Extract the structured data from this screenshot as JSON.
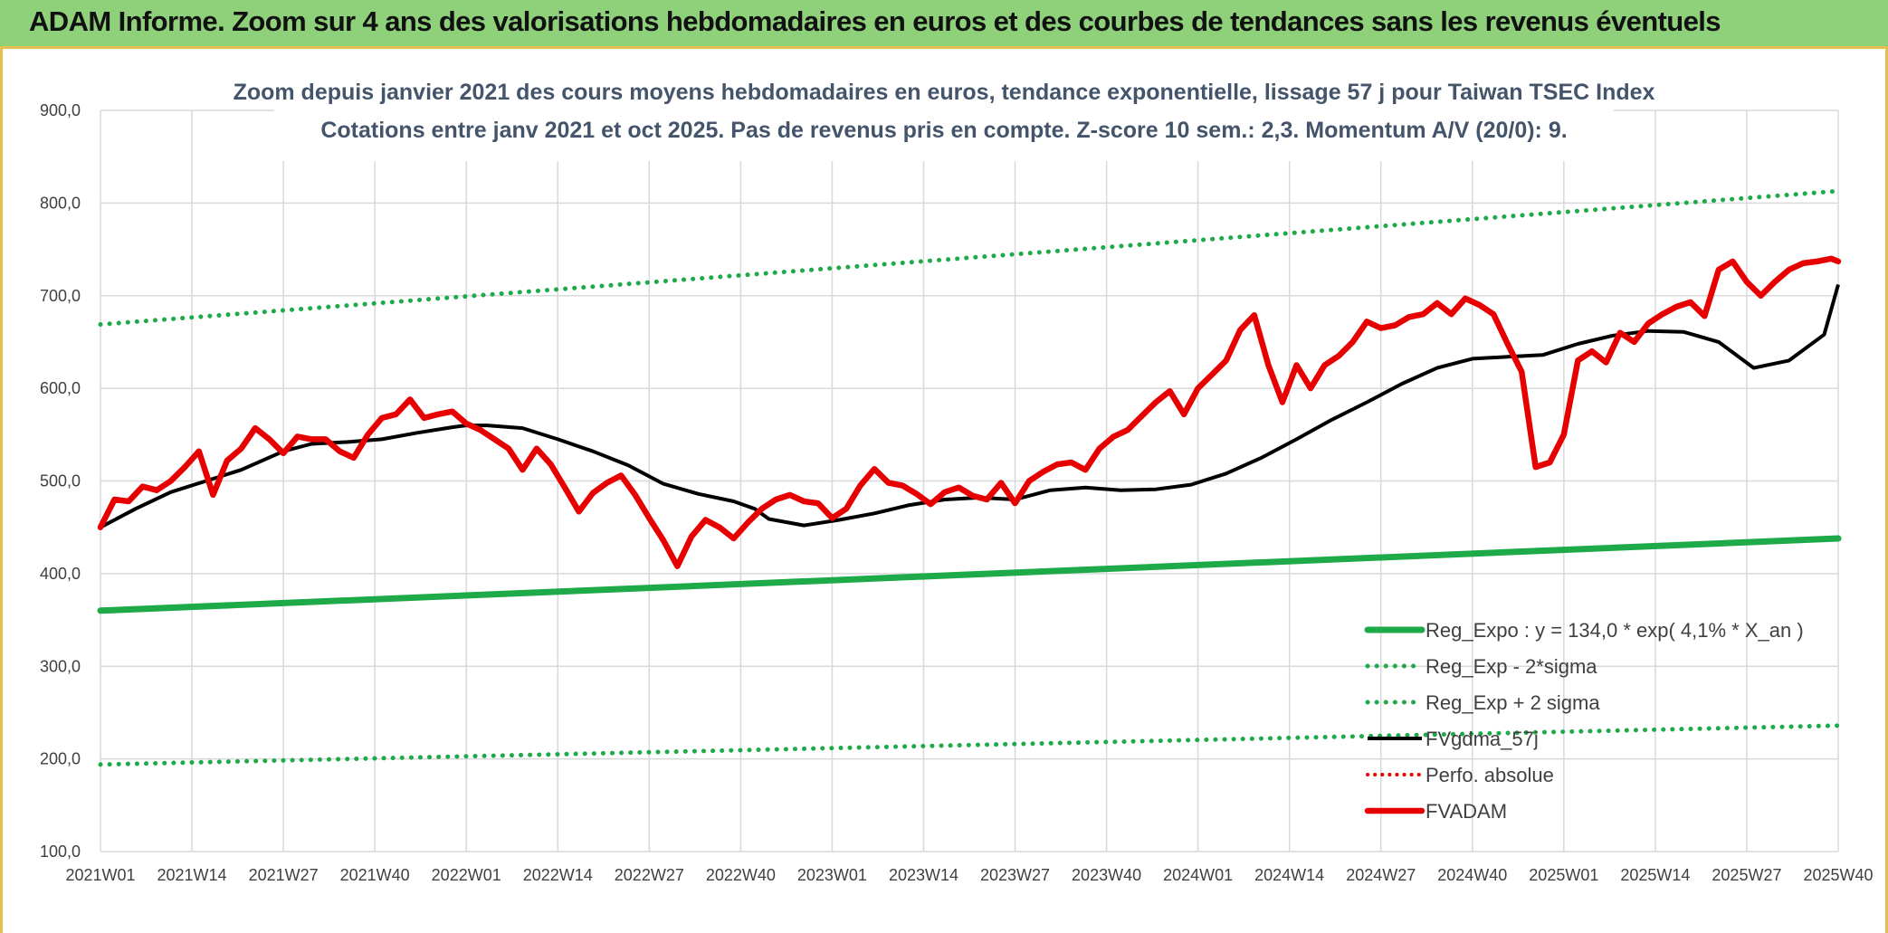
{
  "banner": {
    "title": "ADAM Informe. Zoom sur 4 ans des valorisations hebdomadaires en euros et des courbes de tendances sans les revenus éventuels"
  },
  "colors": {
    "banner_bg": "#8fd17a",
    "accent_gold": "#e2c04d",
    "green": "#1faa4a",
    "red": "#e60000",
    "black": "#000000",
    "grid": "#d9d9d9"
  },
  "chart_data": {
    "type": "line",
    "title_line1": "Zoom depuis janvier 2021 des cours moyens hebdomadaires en euros, tendance exponentielle, lissage 57 j pour Taiwan TSEC Index",
    "title_line2": "Cotations entre janv 2021 et oct 2025. Pas de revenus pris en compte. Z-score 10 sem.: 2,3. Momentum A/V (20/0): 9.",
    "x_tick_labels": [
      "2021W01",
      "2021W14",
      "2021W27",
      "2021W40",
      "2022W01",
      "2022W14",
      "2022W27",
      "2022W40",
      "2023W01",
      "2023W14",
      "2023W27",
      "2023W40",
      "2024W01",
      "2024W14",
      "2024W27",
      "2024W40",
      "2025W01",
      "2025W14",
      "2025W27",
      "2025W40"
    ],
    "x_range_weeks": [
      0,
      247
    ],
    "ylim": [
      100,
      900
    ],
    "y_ticks": [
      100,
      200,
      300,
      400,
      500,
      600,
      700,
      800,
      900
    ],
    "y_tick_labels": [
      "100,0",
      "200,0",
      "300,0",
      "400,0",
      "500,0",
      "600,0",
      "700,0",
      "800,0",
      "900,0"
    ],
    "grid": true,
    "legend_position": "bottom-right",
    "legend": [
      {
        "key": "reg",
        "label": "Reg_Expo : y = 134,0 * exp( 4,1% *  X_an )",
        "style": "solid-thick",
        "color": "#1faa4a"
      },
      {
        "key": "lower",
        "label": "Reg_Exp - 2*sigma",
        "style": "dotted",
        "color": "#1faa4a"
      },
      {
        "key": "upper",
        "label": "Reg_Exp + 2 sigma",
        "style": "dotted",
        "color": "#1faa4a"
      },
      {
        "key": "smooth",
        "label": "FVgdma_57j",
        "style": "solid",
        "color": "#000000"
      },
      {
        "key": "perfo",
        "label": "Perfo. absolue",
        "style": "dotted",
        "color": "#e60000"
      },
      {
        "key": "fvadam",
        "label": "FVADAM",
        "style": "solid-thick",
        "color": "#e60000"
      }
    ],
    "series": [
      {
        "name": "Reg_Expo",
        "key": "reg",
        "x": [
          0,
          247
        ],
        "values": [
          360,
          438
        ]
      },
      {
        "name": "Reg_Exp - 2*sigma",
        "key": "lower",
        "x": [
          0,
          247
        ],
        "values": [
          194,
          236
        ]
      },
      {
        "name": "Reg_Exp + 2 sigma",
        "key": "upper",
        "x": [
          0,
          247
        ],
        "values": [
          669,
          813
        ]
      },
      {
        "name": "FVgdma_57j",
        "key": "smooth",
        "x": [
          0,
          5,
          10,
          15,
          20,
          26,
          30,
          35,
          40,
          45,
          50,
          52,
          55,
          60,
          65,
          70,
          75,
          80,
          85,
          90,
          93,
          95,
          100,
          105,
          110,
          115,
          120,
          125,
          130,
          135,
          140,
          145,
          150,
          155,
          160,
          165,
          170,
          175,
          180,
          185,
          190,
          195,
          200,
          205,
          210,
          215,
          220,
          225,
          230,
          235,
          240,
          245,
          247
        ],
        "values": [
          450,
          470,
          488,
          500,
          512,
          532,
          540,
          542,
          545,
          552,
          558,
          560,
          560,
          557,
          545,
          532,
          517,
          497,
          486,
          478,
          470,
          459,
          452,
          458,
          465,
          474,
          480,
          482,
          480,
          490,
          493,
          490,
          491,
          496,
          508,
          525,
          545,
          566,
          585,
          605,
          622,
          632,
          634,
          636,
          648,
          657,
          662,
          661,
          650,
          622,
          630,
          658,
          712
        ]
      },
      {
        "name": "FVADAM",
        "key": "fvadam",
        "x": [
          0,
          2,
          4,
          6,
          8,
          10,
          12,
          14,
          16,
          18,
          20,
          22,
          24,
          26,
          28,
          30,
          32,
          34,
          36,
          38,
          40,
          42,
          44,
          46,
          48,
          50,
          52,
          54,
          56,
          58,
          60,
          62,
          64,
          66,
          68,
          70,
          72,
          74,
          76,
          78,
          80,
          82,
          84,
          86,
          88,
          90,
          92,
          94,
          96,
          98,
          100,
          102,
          104,
          106,
          108,
          110,
          112,
          114,
          116,
          118,
          120,
          122,
          124,
          126,
          128,
          130,
          132,
          134,
          136,
          138,
          140,
          142,
          144,
          146,
          148,
          150,
          152,
          154,
          156,
          158,
          160,
          162,
          164,
          166,
          168,
          170,
          172,
          174,
          176,
          178,
          180,
          182,
          184,
          186,
          188,
          190,
          192,
          194,
          196,
          198,
          200,
          202,
          204,
          206,
          208,
          210,
          212,
          214,
          216,
          218,
          220,
          222,
          224,
          226,
          228,
          230,
          232,
          234,
          236,
          238,
          240,
          242,
          244,
          246,
          247
        ],
        "values": [
          450,
          480,
          478,
          494,
          490,
          500,
          515,
          532,
          485,
          522,
          535,
          557,
          545,
          530,
          548,
          545,
          545,
          532,
          525,
          550,
          568,
          572,
          588,
          568,
          572,
          575,
          562,
          555,
          545,
          535,
          512,
          535,
          518,
          493,
          467,
          487,
          498,
          506,
          485,
          460,
          436,
          408,
          440,
          458,
          450,
          438,
          455,
          470,
          480,
          485,
          478,
          476,
          460,
          470,
          495,
          513,
          498,
          495,
          486,
          475,
          488,
          493,
          484,
          480,
          498,
          476,
          500,
          510,
          518,
          520,
          512,
          535,
          548,
          555,
          570,
          585,
          597,
          572,
          600,
          615,
          630,
          663,
          679,
          625,
          585,
          625,
          600,
          625,
          635,
          650,
          672,
          665,
          668,
          677,
          680,
          692,
          680,
          697,
          690,
          680,
          648,
          618,
          515,
          520,
          550,
          630,
          640,
          628,
          660,
          650,
          670,
          680,
          688,
          693,
          678,
          728,
          737,
          715,
          700,
          715,
          728,
          735,
          737,
          740,
          737
        ]
      }
    ]
  }
}
